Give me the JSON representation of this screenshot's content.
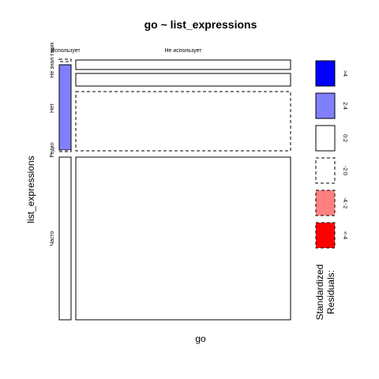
{
  "chart_data": {
    "type": "mosaic",
    "title": "go ~ list_expressions",
    "xlabel": "go",
    "ylabel": "list_expressions",
    "x_categories": [
      "Использует",
      "Не использует"
    ],
    "y_categories": [
      "Не знал таких",
      "Нет",
      "Редко",
      "Часто"
    ],
    "cells": [
      {
        "x": "Использует",
        "y": "Не знал таких",
        "residual_band": "-2:0"
      },
      {
        "x": "Использует",
        "y": "Нет",
        "residual_band": "2:4"
      },
      {
        "x": "Использует",
        "y": "Редко",
        "residual_band": "-2:0"
      },
      {
        "x": "Использует",
        "y": "Часто",
        "residual_band": "0:2"
      },
      {
        "x": "Не использует",
        "y": "Не знал таких",
        "residual_band": "0:2"
      },
      {
        "x": "Не использует",
        "y": "Нет",
        "residual_band": "-2:0"
      },
      {
        "x": "Не использует",
        "y": "Редко",
        "residual_band": "0:2"
      },
      {
        "x": "Не использует",
        "y": "Часто",
        "residual_band": "0:2"
      }
    ],
    "legend": {
      "title_lines": [
        "Standardized",
        "Residuals:"
      ],
      "items": [
        {
          "label": ">4",
          "color": "#0000ff",
          "dashed": false
        },
        {
          "label": "2:4",
          "color": "#8080ff",
          "dashed": false
        },
        {
          "label": "0:2",
          "color": "#ffffff",
          "dashed": false
        },
        {
          "label": "-2:0",
          "color": "#ffffff",
          "dashed": true
        },
        {
          "label": "-4:-2",
          "color": "#ff8080",
          "dashed": true
        },
        {
          "label": "<-4",
          "color": "#ff0000",
          "dashed": true
        }
      ]
    }
  }
}
